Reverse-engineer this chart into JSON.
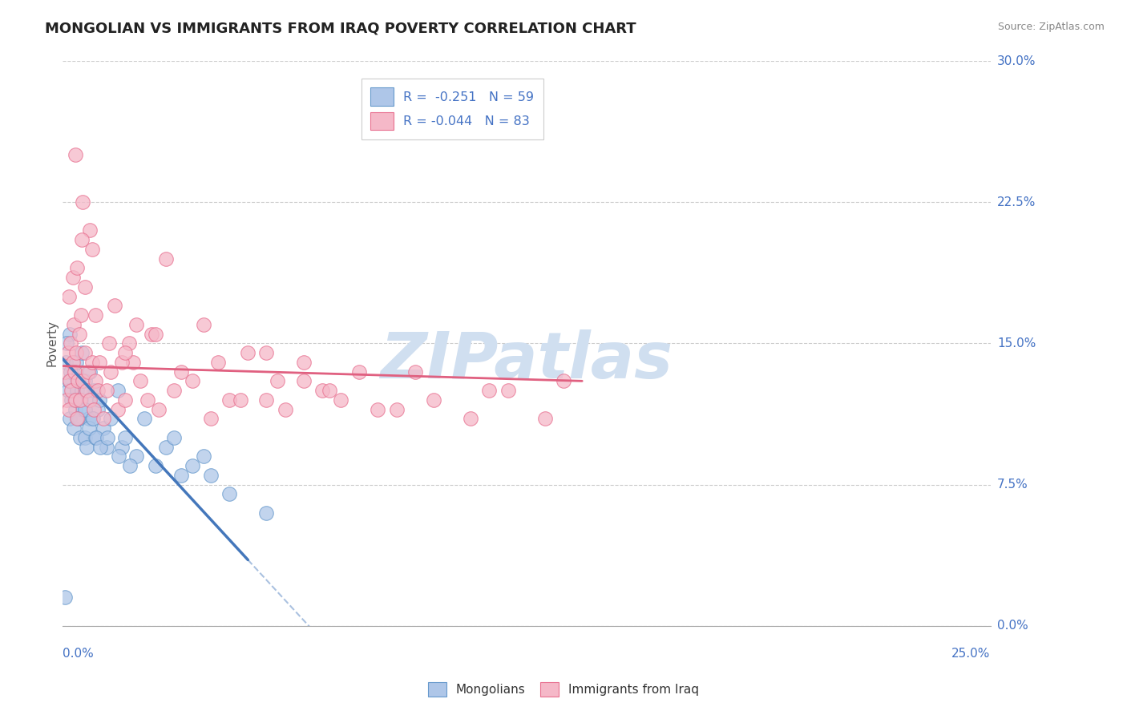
{
  "title": "MONGOLIAN VS IMMIGRANTS FROM IRAQ POVERTY CORRELATION CHART",
  "source": "Source: ZipAtlas.com",
  "ylabel": "Poverty",
  "ytick_vals": [
    0.0,
    7.5,
    15.0,
    22.5,
    30.0
  ],
  "xlim": [
    0.0,
    25.0
  ],
  "ylim": [
    0.0,
    30.0
  ],
  "r_mongolian": -0.251,
  "n_mongolian": 59,
  "r_iraq": -0.044,
  "n_iraq": 83,
  "legend_label_1": "Mongolians",
  "legend_label_2": "Immigrants from Iraq",
  "color_mongolian_fill": "#aec6e8",
  "color_mongolian_edge": "#6699cc",
  "color_iraq_fill": "#f5b8c8",
  "color_iraq_edge": "#e87090",
  "color_line_mongolian": "#4477bb",
  "color_line_iraq": "#e06080",
  "watermark_color": "#d0dff0",
  "watermark_text": "ZIPatlas",
  "reg_mongolian_x0": 0.0,
  "reg_mongolian_y0": 14.2,
  "reg_mongolian_x1": 5.0,
  "reg_mongolian_y1": 3.5,
  "reg_mongolian_dash_x1": 12.5,
  "reg_iraq_x0": 0.0,
  "reg_iraq_y0": 13.8,
  "reg_iraq_x1": 14.0,
  "reg_iraq_y1": 13.0,
  "mon_x": [
    0.1,
    0.15,
    0.18,
    0.2,
    0.2,
    0.25,
    0.28,
    0.3,
    0.35,
    0.38,
    0.4,
    0.42,
    0.45,
    0.48,
    0.5,
    0.52,
    0.55,
    0.6,
    0.62,
    0.65,
    0.7,
    0.72,
    0.75,
    0.8,
    0.85,
    0.9,
    0.95,
    1.0,
    1.1,
    1.2,
    1.3,
    1.5,
    1.6,
    1.7,
    2.0,
    2.2,
    2.5,
    2.8,
    3.0,
    3.2,
    3.5,
    3.8,
    4.0,
    0.12,
    0.22,
    0.32,
    0.42,
    0.52,
    0.62,
    0.72,
    0.82,
    0.92,
    1.02,
    1.22,
    1.52,
    1.82,
    4.5,
    5.5,
    0.08
  ],
  "mon_y": [
    14.0,
    12.5,
    13.0,
    15.5,
    11.0,
    12.0,
    13.5,
    10.5,
    11.5,
    14.0,
    12.5,
    13.0,
    11.0,
    10.0,
    12.0,
    14.5,
    11.5,
    13.0,
    10.0,
    9.5,
    12.0,
    11.0,
    13.5,
    11.0,
    12.5,
    10.0,
    11.5,
    12.0,
    10.5,
    9.5,
    11.0,
    12.5,
    9.5,
    10.0,
    9.0,
    11.0,
    8.5,
    9.5,
    10.0,
    8.0,
    8.5,
    9.0,
    8.0,
    15.0,
    13.5,
    12.0,
    11.0,
    12.5,
    11.5,
    10.5,
    11.0,
    10.0,
    9.5,
    10.0,
    9.0,
    8.5,
    7.0,
    6.0,
    1.5
  ],
  "iraq_x": [
    0.08,
    0.12,
    0.15,
    0.18,
    0.2,
    0.22,
    0.25,
    0.28,
    0.3,
    0.32,
    0.35,
    0.38,
    0.4,
    0.42,
    0.45,
    0.48,
    0.5,
    0.55,
    0.6,
    0.65,
    0.7,
    0.75,
    0.8,
    0.85,
    0.9,
    0.95,
    1.0,
    1.1,
    1.2,
    1.3,
    1.5,
    1.7,
    1.9,
    2.1,
    2.3,
    2.6,
    3.0,
    3.5,
    4.0,
    4.5,
    5.0,
    5.5,
    6.0,
    6.5,
    7.0,
    7.5,
    8.0,
    9.0,
    10.0,
    11.0,
    12.0,
    13.0,
    0.6,
    0.8,
    1.4,
    2.0,
    2.8,
    1.8,
    4.2,
    5.8,
    7.2,
    8.5,
    1.6,
    2.4,
    3.2,
    4.8,
    0.35,
    0.55,
    0.75,
    6.5,
    9.5,
    11.5,
    13.5,
    0.18,
    0.28,
    0.4,
    0.52,
    0.9,
    1.25,
    1.7,
    2.5,
    3.8,
    5.5
  ],
  "iraq_y": [
    13.5,
    12.0,
    14.5,
    11.5,
    13.0,
    15.0,
    12.5,
    14.0,
    16.0,
    13.5,
    12.0,
    14.5,
    11.0,
    13.0,
    15.5,
    12.0,
    16.5,
    13.0,
    14.5,
    12.5,
    13.5,
    12.0,
    14.0,
    11.5,
    13.0,
    12.5,
    14.0,
    11.0,
    12.5,
    13.5,
    11.5,
    12.0,
    14.0,
    13.0,
    12.0,
    11.5,
    12.5,
    13.0,
    11.0,
    12.0,
    14.5,
    12.0,
    11.5,
    13.0,
    12.5,
    12.0,
    13.5,
    11.5,
    12.0,
    11.0,
    12.5,
    11.0,
    18.0,
    20.0,
    17.0,
    16.0,
    19.5,
    15.0,
    14.0,
    13.0,
    12.5,
    11.5,
    14.0,
    15.5,
    13.5,
    12.0,
    25.0,
    22.5,
    21.0,
    14.0,
    13.5,
    12.5,
    13.0,
    17.5,
    18.5,
    19.0,
    20.5,
    16.5,
    15.0,
    14.5,
    15.5,
    16.0,
    14.5
  ]
}
